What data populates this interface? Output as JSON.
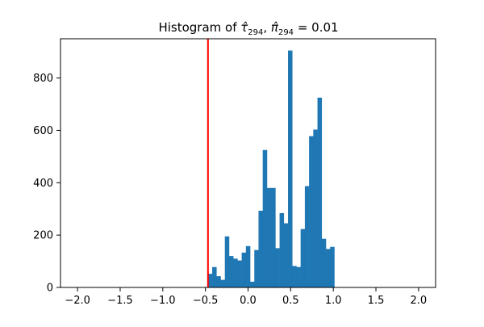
{
  "chart_data": {
    "type": "histogram",
    "title": {
      "prefix": "Histogram of ",
      "var1": "τ̂",
      "sub1": "294",
      "sep": ", ",
      "var2": "π̂",
      "sub2": "294",
      "suffix": " = 0.01"
    },
    "xlabel": "",
    "ylabel": "",
    "xlim": [
      -2.2,
      2.2
    ],
    "ylim": [
      0,
      950
    ],
    "xticks": [
      -2.0,
      -1.5,
      -1.0,
      -0.5,
      0.0,
      0.5,
      1.0,
      1.5,
      2.0
    ],
    "xtick_labels": [
      "−2.0",
      "−1.5",
      "−1.0",
      "−0.5",
      "0.0",
      "0.5",
      "1.0",
      "1.5",
      "2.0"
    ],
    "yticks": [
      0,
      200,
      400,
      600,
      800
    ],
    "ytick_labels": [
      "0",
      "200",
      "400",
      "600",
      "800"
    ],
    "grid": false,
    "bar_color": "#1f77b4",
    "vline": {
      "x": -0.47,
      "color": "#ff0000"
    },
    "bins": {
      "start": -0.47,
      "width": 0.0494,
      "counts": [
        52,
        78,
        43,
        29,
        195,
        120,
        110,
        103,
        133,
        158,
        22,
        143,
        293,
        525,
        380,
        380,
        150,
        284,
        245,
        905,
        82,
        78,
        223,
        387,
        578,
        603,
        725,
        186,
        147,
        155
      ]
    }
  }
}
